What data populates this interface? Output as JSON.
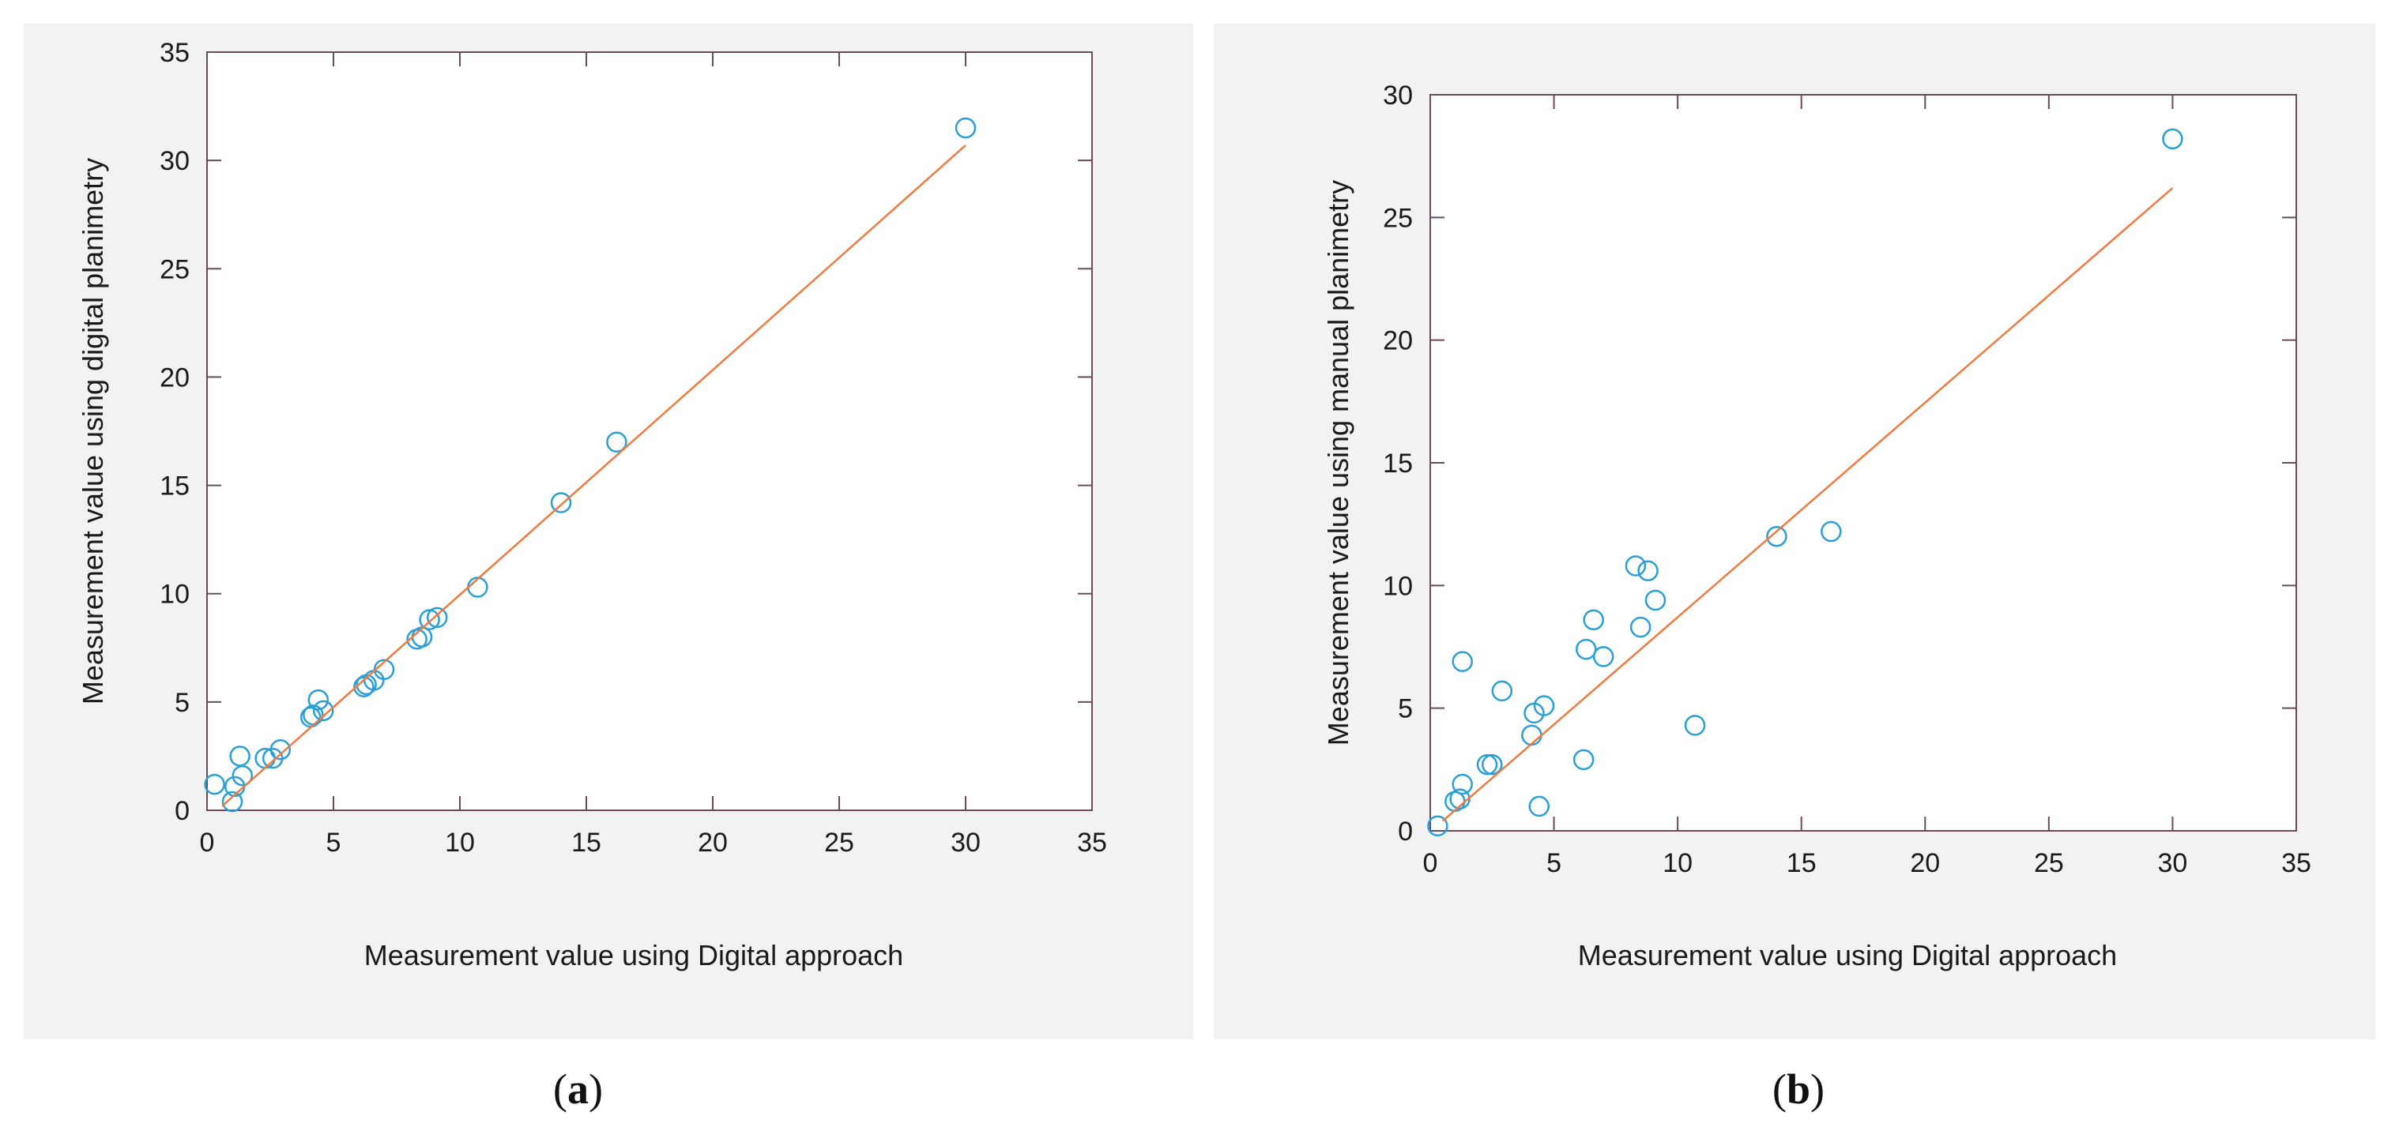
{
  "chart_data": [
    {
      "type": "scatter",
      "xlabel": "Measurement value using Digital approach",
      "ylabel": "Measurement value using digital planimetry",
      "xlim": [
        0,
        35
      ],
      "ylim": [
        0,
        35
      ],
      "xticks": [
        0,
        5,
        10,
        15,
        20,
        25,
        30,
        35
      ],
      "yticks": [
        0,
        5,
        10,
        15,
        20,
        25,
        30,
        35
      ],
      "grid": false,
      "series": [
        {
          "marker": "open-circle",
          "color": "#2a9fd6",
          "points": [
            [
              0.3,
              1.2
            ],
            [
              1.0,
              0.4
            ],
            [
              1.1,
              1.1
            ],
            [
              1.3,
              2.5
            ],
            [
              1.4,
              1.6
            ],
            [
              2.3,
              2.4
            ],
            [
              2.6,
              2.4
            ],
            [
              2.9,
              2.8
            ],
            [
              4.1,
              4.3
            ],
            [
              4.2,
              4.4
            ],
            [
              4.4,
              5.1
            ],
            [
              4.6,
              4.6
            ],
            [
              6.2,
              5.7
            ],
            [
              6.3,
              5.8
            ],
            [
              6.6,
              6.0
            ],
            [
              7.0,
              6.5
            ],
            [
              8.3,
              7.9
            ],
            [
              8.5,
              8.0
            ],
            [
              8.8,
              8.8
            ],
            [
              9.1,
              8.9
            ],
            [
              10.7,
              10.3
            ],
            [
              14.0,
              14.2
            ],
            [
              16.2,
              17.0
            ],
            [
              30.0,
              31.5
            ]
          ]
        },
        {
          "kind": "fit-line",
          "color": "#f07a3f",
          "x": [
            0.6,
            30.0
          ],
          "y": [
            0.2,
            30.7
          ]
        }
      ]
    },
    {
      "type": "scatter",
      "xlabel": "Measurement value using Digital approach",
      "ylabel": "Measurement value using manual planimetry",
      "xlim": [
        0,
        35
      ],
      "ylim": [
        0,
        30
      ],
      "xticks": [
        0,
        5,
        10,
        15,
        20,
        25,
        30,
        35
      ],
      "yticks": [
        0,
        5,
        10,
        15,
        20,
        25,
        30
      ],
      "grid": false,
      "series": [
        {
          "marker": "open-circle",
          "color": "#2a9fd6",
          "points": [
            [
              0.3,
              0.2
            ],
            [
              1.0,
              1.2
            ],
            [
              1.2,
              1.3
            ],
            [
              1.3,
              1.9
            ],
            [
              1.3,
              6.9
            ],
            [
              2.3,
              2.7
            ],
            [
              2.5,
              2.7
            ],
            [
              2.9,
              5.7
            ],
            [
              4.1,
              3.9
            ],
            [
              4.2,
              4.8
            ],
            [
              4.4,
              1.0
            ],
            [
              4.6,
              5.1
            ],
            [
              6.2,
              2.9
            ],
            [
              6.3,
              7.4
            ],
            [
              6.6,
              8.6
            ],
            [
              7.0,
              7.1
            ],
            [
              8.3,
              10.8
            ],
            [
              8.5,
              8.3
            ],
            [
              8.8,
              10.6
            ],
            [
              9.1,
              9.4
            ],
            [
              10.7,
              4.3
            ],
            [
              14.0,
              12.0
            ],
            [
              16.2,
              12.2
            ],
            [
              30.0,
              28.2
            ]
          ]
        },
        {
          "kind": "fit-line",
          "color": "#f07a3f",
          "x": [
            0.5,
            30.0
          ],
          "y": [
            0.4,
            26.2
          ]
        }
      ]
    }
  ],
  "labels": {
    "a_open": "(",
    "a_letter": "a",
    "a_close": ")",
    "b_open": "(",
    "b_letter": "b",
    "b_close": ")"
  }
}
